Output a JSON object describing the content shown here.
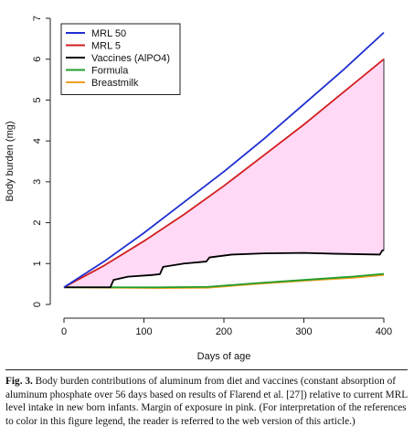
{
  "chart_data": {
    "type": "line",
    "xlabel": "Days of age",
    "ylabel": "Body burden (mg)",
    "xlim": [
      0,
      400
    ],
    "ylim": [
      0,
      7
    ],
    "xticks": [
      "0",
      "100",
      "200",
      "300",
      "400"
    ],
    "yticks": [
      "0",
      "1",
      "2",
      "3",
      "4",
      "5",
      "6",
      "7"
    ],
    "legend_position": "top-left",
    "grid": false,
    "shaded_region": {
      "between": [
        "Vaccines (AlPO4)",
        "MRL 5"
      ],
      "color": "#ffd9f5",
      "meaning": "Margin of exposure"
    },
    "series": [
      {
        "name": "MRL 50",
        "color": "#1f2fd1",
        "x": [
          0,
          50,
          100,
          150,
          200,
          250,
          300,
          350,
          400
        ],
        "y": [
          0.42,
          1.05,
          1.75,
          2.5,
          3.25,
          4.05,
          4.9,
          5.75,
          6.65
        ]
      },
      {
        "name": "MRL 5",
        "color": "#d21f1f",
        "x": [
          0,
          50,
          100,
          150,
          200,
          250,
          300,
          350,
          400
        ],
        "y": [
          0.42,
          0.95,
          1.55,
          2.2,
          2.9,
          3.65,
          4.4,
          5.2,
          6.0
        ]
      },
      {
        "name": "Vaccines (AlPO4)",
        "color": "#000000",
        "x": [
          0,
          58,
          62,
          80,
          110,
          120,
          124,
          150,
          178,
          182,
          210,
          250,
          300,
          340,
          395,
          398,
          400
        ],
        "y": [
          0.42,
          0.42,
          0.6,
          0.68,
          0.72,
          0.74,
          0.92,
          1.0,
          1.05,
          1.15,
          1.22,
          1.25,
          1.26,
          1.24,
          1.22,
          1.32,
          1.33
        ]
      },
      {
        "name": "Formula",
        "color": "#1f9d2a",
        "x": [
          0,
          60,
          120,
          180,
          240,
          300,
          360,
          400
        ],
        "y": [
          0.42,
          0.42,
          0.42,
          0.43,
          0.52,
          0.6,
          0.68,
          0.75
        ]
      },
      {
        "name": "Breastmilk",
        "color": "#f0a020",
        "x": [
          0,
          60,
          120,
          180,
          240,
          300,
          360,
          400
        ],
        "y": [
          0.42,
          0.41,
          0.4,
          0.41,
          0.5,
          0.58,
          0.65,
          0.72
        ]
      }
    ]
  },
  "caption": {
    "label": "Fig. 3.",
    "text": "Body burden contributions of aluminum from diet and vaccines (constant absorption of aluminum phosphate over 56 days based on results of Flarend et al. [27]) relative to current MRL level intake in new born infants. Margin of exposure in pink. (For interpretation of the references to color in this figure legend, the reader is referred to the web version of this article.)"
  }
}
